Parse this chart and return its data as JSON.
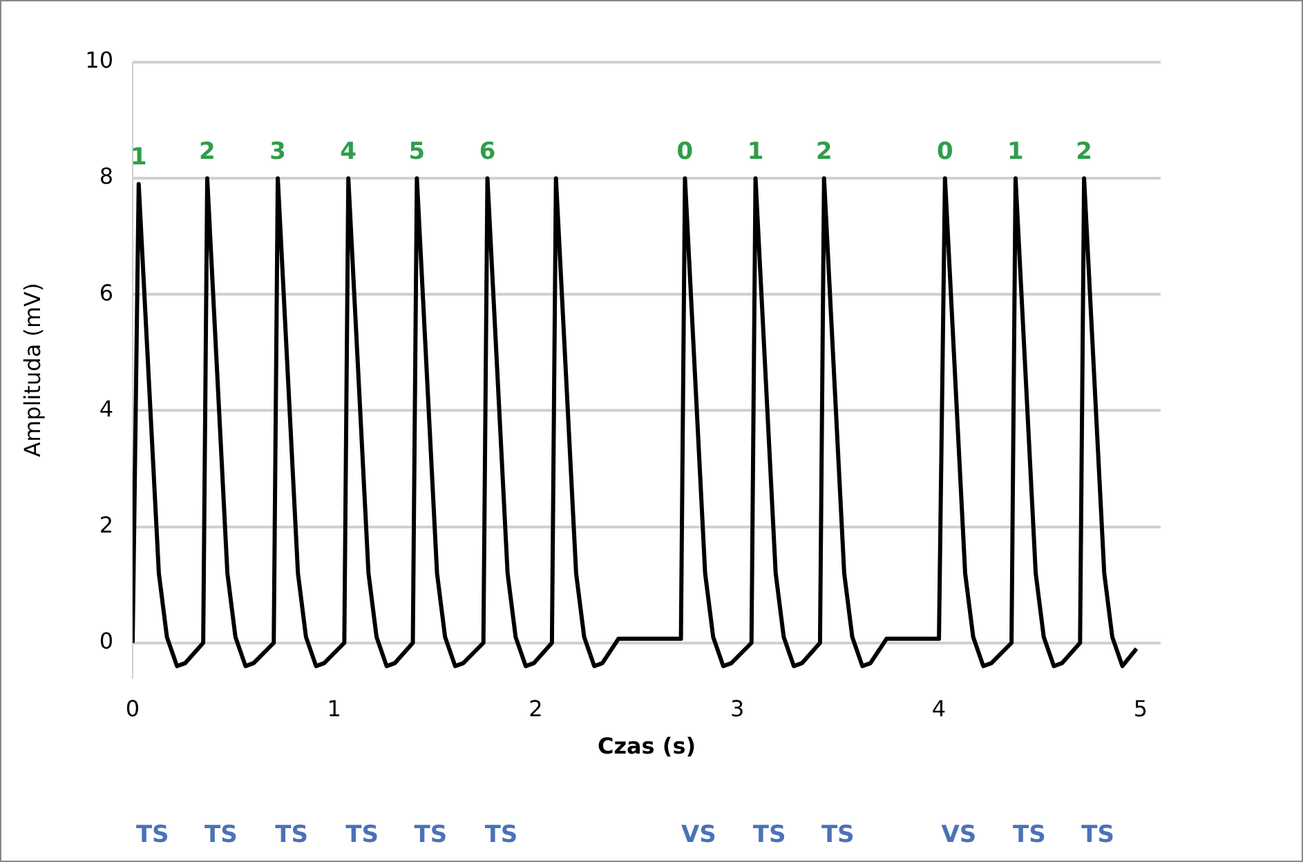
{
  "chart_data": {
    "type": "line",
    "xlabel": "Czas (s)",
    "ylabel": "Amplituda (mV)",
    "xlim": [
      0,
      5.1
    ],
    "xticks": [
      0,
      1,
      2,
      3,
      4,
      5
    ],
    "ylim": [
      -0.6,
      10
    ],
    "yticks": [
      0,
      2,
      4,
      6,
      8,
      10
    ],
    "grid": "y",
    "marker": "none",
    "line_style": "solid",
    "series": [
      {
        "color": "#000000",
        "x": [
          0,
          0.03,
          0.13,
          0.17,
          0.22,
          0.26,
          0.35,
          0.37,
          0.47,
          0.51,
          0.56,
          0.6,
          0.7,
          0.72,
          0.82,
          0.86,
          0.91,
          0.95,
          1.05,
          1.07,
          1.17,
          1.21,
          1.26,
          1.3,
          1.39,
          1.41,
          1.51,
          1.55,
          1.6,
          1.64,
          1.74,
          1.76,
          1.86,
          1.9,
          1.95,
          1.99,
          2.08,
          2.1,
          2.2,
          2.24,
          2.29,
          2.33,
          2.41,
          2.72,
          2.74,
          2.84,
          2.88,
          2.93,
          2.97,
          3.07,
          3.09,
          3.19,
          3.23,
          3.28,
          3.32,
          3.41,
          3.43,
          3.53,
          3.57,
          3.62,
          3.66,
          3.74,
          4.0,
          4.03,
          4.13,
          4.17,
          4.22,
          4.26,
          4.36,
          4.38,
          4.48,
          4.52,
          4.57,
          4.61,
          4.7,
          4.72,
          4.82,
          4.86,
          4.91,
          4.98
        ],
        "values": [
          0,
          7.9,
          1.2,
          0.1,
          -0.4,
          -0.35,
          0,
          8,
          1.2,
          0.1,
          -0.4,
          -0.35,
          0,
          8,
          1.2,
          0.1,
          -0.4,
          -0.35,
          0,
          8,
          1.2,
          0.1,
          -0.4,
          -0.35,
          0,
          8,
          1.2,
          0.1,
          -0.4,
          -0.35,
          0,
          8,
          1.2,
          0.1,
          -0.4,
          -0.35,
          0,
          8,
          1.2,
          0.1,
          -0.4,
          -0.35,
          0.07,
          0.07,
          8,
          1.2,
          0.1,
          -0.4,
          -0.35,
          0,
          8,
          1.2,
          0.1,
          -0.4,
          -0.35,
          0,
          8,
          1.2,
          0.1,
          -0.4,
          -0.35,
          0.07,
          0.07,
          8,
          1.2,
          0.1,
          -0.4,
          -0.35,
          0,
          8,
          1.2,
          0.1,
          -0.4,
          -0.35,
          0,
          8,
          1.2,
          0.1,
          -0.4,
          -0.1
        ]
      }
    ],
    "annotations": [
      {
        "text": "1",
        "x": 0.03,
        "y": 7.9
      },
      {
        "text": "2",
        "x": 0.37,
        "y": 8
      },
      {
        "text": "3",
        "x": 0.72,
        "y": 8
      },
      {
        "text": "4",
        "x": 1.07,
        "y": 8
      },
      {
        "text": "5",
        "x": 1.41,
        "y": 8
      },
      {
        "text": "6",
        "x": 1.76,
        "y": 8
      },
      {
        "text": "0",
        "x": 2.74,
        "y": 8
      },
      {
        "text": "1",
        "x": 3.09,
        "y": 8
      },
      {
        "text": "2",
        "x": 3.43,
        "y": 8
      },
      {
        "text": "0",
        "x": 4.03,
        "y": 8
      },
      {
        "text": "1",
        "x": 4.38,
        "y": 8
      },
      {
        "text": "2",
        "x": 4.72,
        "y": 8
      },
      "TS",
      "TS",
      "TS",
      "TS",
      "TS",
      "TS",
      "VS",
      "TS",
      "TS",
      "VS",
      "TS",
      "TS"
    ]
  }
}
